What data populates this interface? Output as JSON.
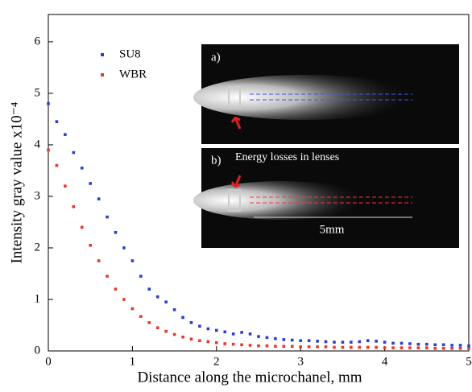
{
  "chart_data": {
    "type": "scatter",
    "xlabel": "Distance along the microchanel, mm",
    "ylabel": "Intensity gray value x10⁻⁴",
    "x": [
      0,
      0.1,
      0.2,
      0.3,
      0.4,
      0.5,
      0.6,
      0.7,
      0.8,
      0.9,
      1.0,
      1.1,
      1.2,
      1.3,
      1.4,
      1.5,
      1.6,
      1.7,
      1.8,
      1.9,
      2.0,
      2.1,
      2.2,
      2.3,
      2.4,
      2.5,
      2.6,
      2.7,
      2.8,
      2.9,
      3.0,
      3.1,
      3.2,
      3.3,
      3.4,
      3.5,
      3.6,
      3.7,
      3.8,
      3.9,
      4.0,
      4.1,
      4.2,
      4.3,
      4.4,
      4.5,
      4.6,
      4.7,
      4.8,
      4.9,
      5.0
    ],
    "series": [
      {
        "name": "SU8",
        "color": "#2a3fd0",
        "values": [
          4.8,
          4.45,
          4.2,
          3.85,
          3.55,
          3.25,
          2.95,
          2.6,
          2.3,
          2.0,
          1.75,
          1.45,
          1.2,
          1.05,
          0.95,
          0.8,
          0.65,
          0.55,
          0.48,
          0.43,
          0.4,
          0.37,
          0.33,
          0.36,
          0.33,
          0.28,
          0.26,
          0.24,
          0.22,
          0.21,
          0.2,
          0.2,
          0.19,
          0.18,
          0.17,
          0.17,
          0.17,
          0.18,
          0.2,
          0.19,
          0.17,
          0.15,
          0.15,
          0.14,
          0.13,
          0.13,
          0.12,
          0.12,
          0.11,
          0.11,
          0.1
        ]
      },
      {
        "name": "WBR",
        "color": "#e8382a",
        "values": [
          3.9,
          3.6,
          3.2,
          2.8,
          2.4,
          2.05,
          1.75,
          1.45,
          1.2,
          1.0,
          0.82,
          0.67,
          0.55,
          0.45,
          0.38,
          0.32,
          0.27,
          0.23,
          0.2,
          0.18,
          0.16,
          0.14,
          0.13,
          0.12,
          0.11,
          0.1,
          0.1,
          0.09,
          0.09,
          0.09,
          0.08,
          0.08,
          0.08,
          0.08,
          0.07,
          0.07,
          0.07,
          0.07,
          0.07,
          0.07,
          0.06,
          0.06,
          0.06,
          0.06,
          0.06,
          0.06,
          0.05,
          0.05,
          0.05,
          0.05,
          0.05
        ]
      }
    ],
    "xlim": [
      0,
      5
    ],
    "ylim": [
      0,
      6.53
    ],
    "xticks": [
      0,
      1,
      2,
      3,
      4,
      5
    ],
    "yticks": [
      0,
      1,
      2,
      3,
      4,
      5,
      6
    ],
    "legend": "upper left",
    "annotations": [
      "a)",
      "b)",
      "Energy losses in lenses",
      "5mm"
    ]
  }
}
